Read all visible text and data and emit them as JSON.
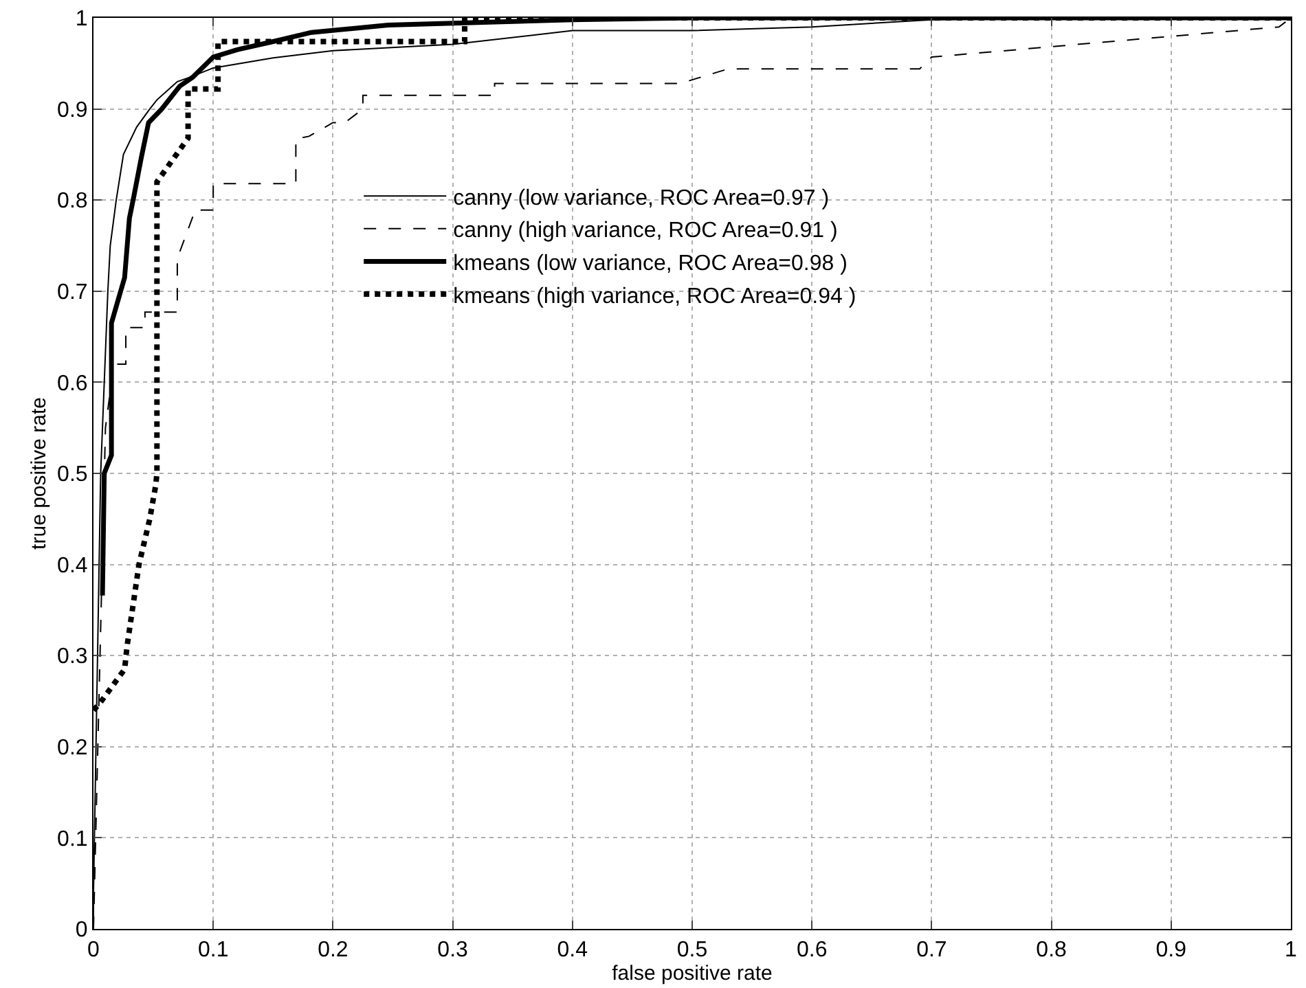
{
  "chart_data": {
    "type": "line",
    "xlabel": "false positive rate",
    "ylabel": "true positive rate",
    "xlim": [
      0,
      1
    ],
    "ylim": [
      0,
      1
    ],
    "xticks": [
      0,
      0.1,
      0.2,
      0.3,
      0.4,
      0.5,
      0.6,
      0.7,
      0.8,
      0.9,
      1
    ],
    "yticks": [
      0,
      0.1,
      0.2,
      0.3,
      0.4,
      0.5,
      0.6,
      0.7,
      0.8,
      0.9,
      1
    ],
    "grid": true,
    "legend": "top",
    "marker": "none",
    "series": [
      {
        "name": "canny (low variance, ROC Area=0.97 )",
        "color": "#000000",
        "line_style": "solid",
        "x": [
          0,
          0,
          0.006,
          0.009,
          0.012,
          0.014,
          0.019,
          0.025,
          0.036,
          0.047,
          0.053,
          0.07,
          0.081,
          0.1,
          0.15,
          0.2,
          0.3,
          0.4,
          0.5,
          0.6,
          0.7,
          0.8,
          0.9,
          1
        ],
        "values": [
          0,
          0.04,
          0.5,
          0.6,
          0.7,
          0.75,
          0.8,
          0.85,
          0.88,
          0.9,
          0.91,
          0.93,
          0.935,
          0.945,
          0.956,
          0.964,
          0.971,
          0.986,
          0.986,
          0.99,
          0.998,
          1,
          1,
          1
        ]
      },
      {
        "name": "canny (high variance, ROC Area=0.91 )",
        "color": "#000000",
        "line_style": "dashed",
        "x": [
          0,
          0.01,
          0.017,
          0.027,
          0.027,
          0.043,
          0.043,
          0.07,
          0.07,
          0.085,
          0.1,
          0.1,
          0.169,
          0.169,
          0.18,
          0.2,
          0.21,
          0.225,
          0.225,
          0.335,
          0.335,
          0.49,
          0.53,
          0.69,
          0.7,
          0.99,
          1
        ],
        "values": [
          0,
          0.55,
          0.62,
          0.62,
          0.66,
          0.66,
          0.677,
          0.677,
          0.736,
          0.789,
          0.789,
          0.818,
          0.818,
          0.867,
          0.87,
          0.885,
          0.885,
          0.9,
          0.915,
          0.915,
          0.928,
          0.928,
          0.944,
          0.944,
          0.957,
          0.99,
          1
        ]
      },
      {
        "name": "kmeans (low variance, ROC Area=0.98 )",
        "color": "#000000",
        "line_style": "solid",
        "x": [
          0.0075,
          0.009,
          0.015,
          0.015,
          0.026,
          0.03,
          0.034,
          0.04,
          0.046,
          0.057,
          0.072,
          0.083,
          0.1,
          0.12,
          0.15,
          0.182,
          0.246,
          0.4,
          0.5,
          1
        ],
        "values": [
          0.366,
          0.5,
          0.52,
          0.665,
          0.715,
          0.78,
          0.806,
          0.847,
          0.885,
          0.9,
          0.925,
          0.935,
          0.957,
          0.965,
          0.974,
          0.984,
          0.992,
          0.998,
          1,
          1
        ]
      },
      {
        "name": "kmeans (high variance, ROC Area=0.94 )",
        "color": "#000000",
        "line_style": "dotted",
        "x": [
          0,
          0.006,
          0.026,
          0.028,
          0.038,
          0.047,
          0.052,
          0.053,
          0.053,
          0.079,
          0.079,
          0.104,
          0.104,
          0.31,
          0.31,
          1
        ],
        "values": [
          0.24,
          0.249,
          0.285,
          0.31,
          0.4,
          0.45,
          0.487,
          0.5,
          0.82,
          0.868,
          0.922,
          0.922,
          0.974,
          0.974,
          1,
          1
        ]
      }
    ]
  }
}
